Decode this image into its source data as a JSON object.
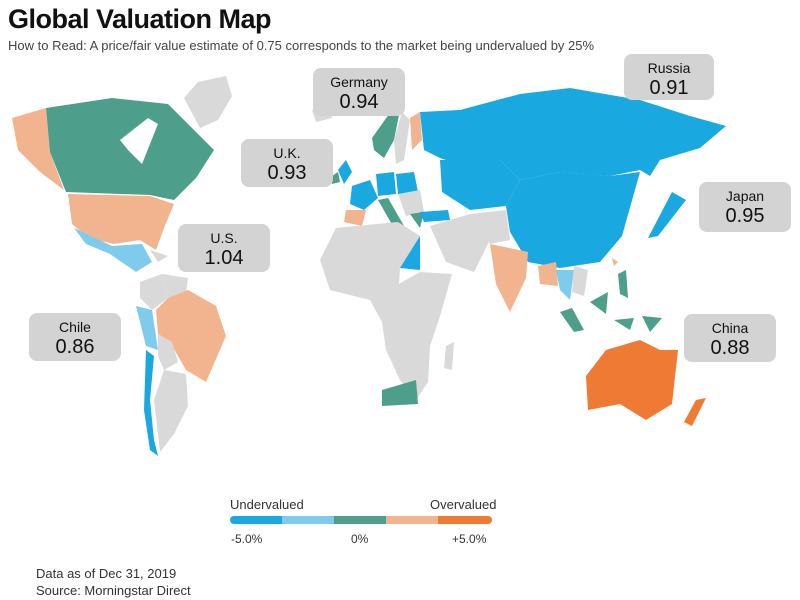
{
  "title": "Global Valuation Map",
  "subtitle": "How to Read: A price/fair value estimate of 0.75 corresponds to the market being undervalued by 25%",
  "colors": {
    "deep_under": "#1aa8e0",
    "under": "#7fcbeb",
    "fair": "#4d9e8a",
    "over": "#f2b48f",
    "deep_over": "#ee7a34",
    "no_data": "#d9d9d9",
    "callout_bg": "#d3d3d3"
  },
  "callouts": [
    {
      "name": "Germany",
      "value": "0.94"
    },
    {
      "name": "Russia",
      "value": "0.91"
    },
    {
      "name": "U.K.",
      "value": "0.93"
    },
    {
      "name": "Japan",
      "value": "0.95"
    },
    {
      "name": "U.S.",
      "value": "1.04"
    },
    {
      "name": "Chile",
      "value": "0.86"
    },
    {
      "name": "China",
      "value": "0.88"
    }
  ],
  "legend": {
    "left_label": "Undervalued",
    "right_label": "Overvalued",
    "scale": [
      "-5.0%",
      "0%",
      "+5.0%"
    ]
  },
  "footnote": {
    "date": "Data as of Dec 31, 2019",
    "source": "Source: Morningstar Direct"
  }
}
